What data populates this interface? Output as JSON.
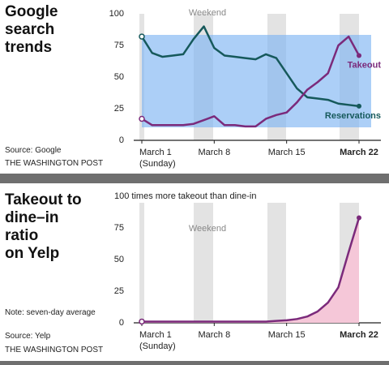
{
  "chart_data": [
    {
      "type": "line",
      "title": "Google\nsearch\ntrends",
      "source": "Source: Google",
      "credit": "THE WASHINGTON POST",
      "annotation": "Weekend",
      "categories": [
        "March 1",
        null,
        null,
        null,
        null,
        null,
        null,
        "March 8",
        null,
        null,
        null,
        null,
        null,
        null,
        "March 15",
        null,
        null,
        null,
        null,
        null,
        null,
        "March 22"
      ],
      "x_sublabel": "(Sunday)",
      "ylim": [
        0,
        100
      ],
      "yticks": [
        0,
        25,
        50,
        75,
        100
      ],
      "series": [
        {
          "name": "Reservations",
          "color": "#16595b",
          "values": [
            82,
            69,
            66,
            67,
            68,
            80,
            90,
            73,
            67,
            66,
            65,
            64,
            68,
            65,
            53,
            41,
            34,
            33,
            32,
            29,
            28,
            27
          ]
        },
        {
          "name": "Takeout",
          "color": "#7b2a7b",
          "values": [
            17,
            12,
            12,
            12,
            12,
            13,
            16,
            19,
            12,
            12,
            11,
            11,
            17,
            20,
            22,
            30,
            40,
            46,
            53,
            75,
            82,
            67
          ]
        }
      ]
    },
    {
      "type": "area",
      "title": "Takeout to\ndine–in\nratio\non Yelp",
      "note": "Note: seven-day average",
      "source": "Source: Yelp",
      "credit": "THE WASHINGTON POST",
      "annotation": "Weekend",
      "categories": [
        "March 1",
        null,
        null,
        null,
        null,
        null,
        null,
        "March 8",
        null,
        null,
        null,
        null,
        null,
        null,
        "March 15",
        null,
        null,
        null,
        null,
        null,
        null,
        "March 22"
      ],
      "x_sublabel": "(Sunday)",
      "ylim": [
        0,
        100
      ],
      "yticks": [
        0,
        25,
        50,
        75,
        {
          "value": 100,
          "label": "100 times more takeout than dine-in"
        }
      ],
      "values": [
        1,
        1,
        1,
        1,
        1,
        1,
        1,
        1,
        1,
        1,
        1,
        1,
        1,
        1.5,
        2,
        3,
        5,
        9,
        16,
        28,
        56,
        83
      ],
      "color": "#7b2a7b",
      "fill_color": "#f5c7d8"
    }
  ]
}
